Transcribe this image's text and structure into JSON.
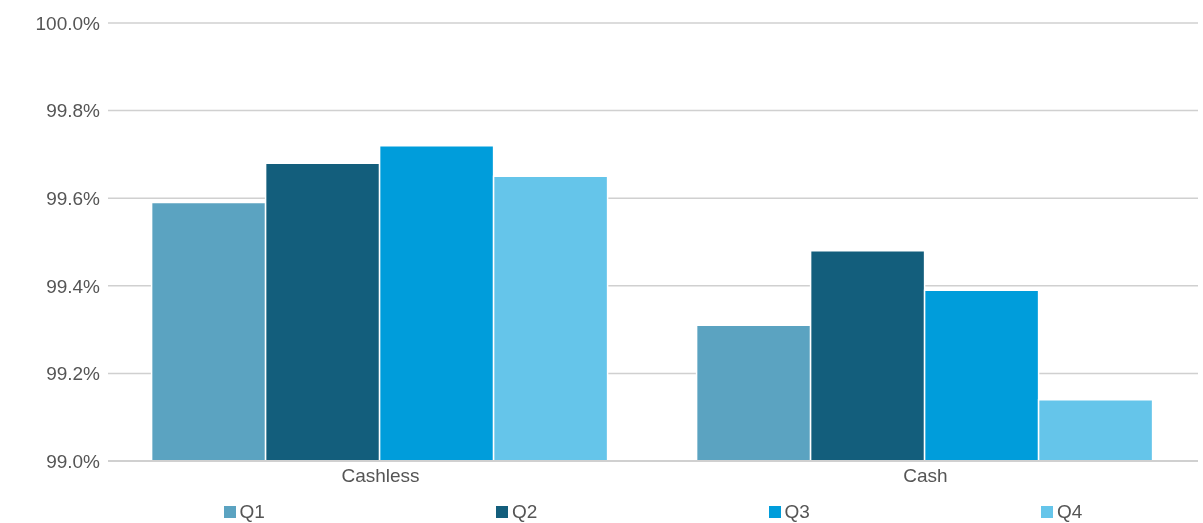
{
  "chart_data": {
    "type": "bar",
    "categories": [
      "Cashless",
      "Cash"
    ],
    "series": [
      {
        "name": "Q1",
        "color": "#5ba3c1",
        "values": [
          99.59,
          99.31
        ]
      },
      {
        "name": "Q2",
        "color": "#135e7c",
        "values": [
          99.68,
          99.48
        ]
      },
      {
        "name": "Q3",
        "color": "#009ddb",
        "values": [
          99.72,
          99.39
        ]
      },
      {
        "name": "Q4",
        "color": "#65c5ea",
        "values": [
          99.65,
          99.14
        ]
      }
    ],
    "ylim": [
      99.0,
      100.0
    ],
    "yticks": [
      {
        "value": 99.0,
        "label": "99.0%"
      },
      {
        "value": 99.2,
        "label": "99.2%"
      },
      {
        "value": 99.4,
        "label": "99.4%"
      },
      {
        "value": 99.6,
        "label": "99.6%"
      },
      {
        "value": 99.8,
        "label": "99.8%"
      },
      {
        "value": 100.0,
        "label": "100.0%"
      }
    ],
    "grid": "y",
    "legend": "bottom"
  }
}
